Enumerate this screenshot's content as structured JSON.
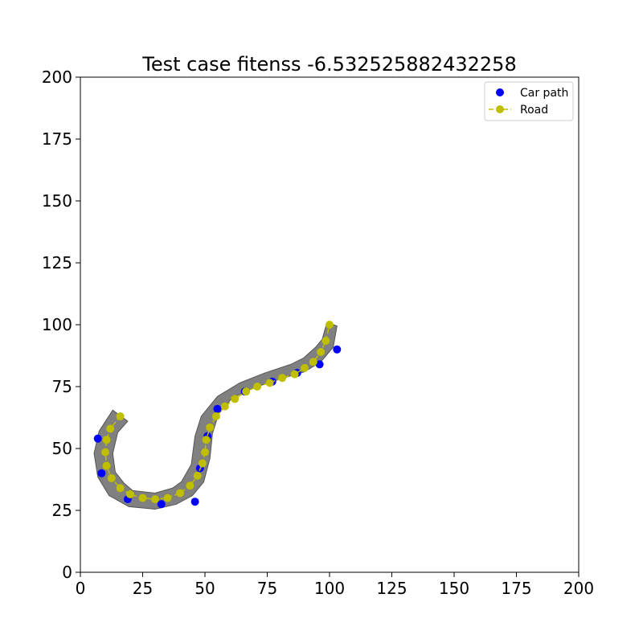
{
  "chart_data": {
    "type": "scatter",
    "title": "Test case fitenss -6.532525882432258",
    "xlabel": "",
    "ylabel": "",
    "xlim": [
      0,
      200
    ],
    "ylim": [
      0,
      200
    ],
    "xticks": [
      "0",
      "25",
      "50",
      "75",
      "100",
      "125",
      "150",
      "175",
      "200"
    ],
    "yticks": [
      "0",
      "25",
      "50",
      "75",
      "100",
      "125",
      "150",
      "175",
      "200"
    ],
    "grid": false,
    "legend_position": "top-right",
    "legend": [
      "Car path",
      "Road"
    ],
    "colors": {
      "car_path": "#0000ff",
      "road": "#bfbf00",
      "road_surface": "#808080"
    },
    "road_polygon": [
      [
        99.0,
        101.0
      ],
      [
        103.0,
        99.5
      ],
      [
        101.5,
        91.0
      ],
      [
        96.5,
        85.0
      ],
      [
        90.0,
        81.0
      ],
      [
        80.0,
        78.0
      ],
      [
        69.5,
        74.5
      ],
      [
        61.0,
        70.5
      ],
      [
        55.5,
        64.0
      ],
      [
        53.0,
        56.0
      ],
      [
        52.0,
        46.0
      ],
      [
        49.5,
        36.5
      ],
      [
        45.0,
        31.0
      ],
      [
        38.5,
        27.5
      ],
      [
        30.0,
        25.5
      ],
      [
        19.5,
        26.5
      ],
      [
        11.5,
        31.0
      ],
      [
        7.0,
        38.5
      ],
      [
        5.5,
        48.0
      ],
      [
        7.5,
        57.0
      ],
      [
        13.0,
        65.5
      ],
      [
        19.0,
        61.0
      ],
      [
        15.0,
        56.5
      ],
      [
        13.0,
        48.0
      ],
      [
        14.0,
        40.5
      ],
      [
        17.5,
        36.0
      ],
      [
        21.0,
        33.0
      ],
      [
        30.0,
        32.0
      ],
      [
        37.0,
        34.0
      ],
      [
        40.5,
        36.5
      ],
      [
        44.5,
        43.5
      ],
      [
        46.0,
        55.0
      ],
      [
        48.5,
        63.0
      ],
      [
        55.0,
        71.0
      ],
      [
        64.0,
        76.5
      ],
      [
        74.0,
        80.5
      ],
      [
        84.5,
        84.0
      ],
      [
        89.5,
        86.5
      ],
      [
        94.5,
        91.0
      ],
      [
        97.0,
        94.0
      ]
    ],
    "series": [
      {
        "name": "Car path",
        "kind": "scatter",
        "points": [
          [
            7,
            54
          ],
          [
            8.5,
            40
          ],
          [
            19,
            29.5
          ],
          [
            32.5,
            27.5
          ],
          [
            46,
            28.5
          ],
          [
            48,
            42
          ],
          [
            51,
            55
          ],
          [
            55,
            66
          ],
          [
            66,
            73
          ],
          [
            77,
            77
          ],
          [
            87,
            80.5
          ],
          [
            96,
            84
          ],
          [
            103,
            90
          ]
        ]
      },
      {
        "name": "Road",
        "kind": "line-dashed-markers",
        "points": [
          [
            16,
            63
          ],
          [
            12,
            58
          ],
          [
            10.5,
            53.5
          ],
          [
            10,
            48.5
          ],
          [
            10.5,
            43
          ],
          [
            12.5,
            38
          ],
          [
            16,
            34
          ],
          [
            20,
            31.5
          ],
          [
            25,
            30
          ],
          [
            30,
            29.5
          ],
          [
            35,
            30
          ],
          [
            40,
            32
          ],
          [
            44,
            35
          ],
          [
            47,
            39
          ],
          [
            49,
            44
          ],
          [
            50,
            48.5
          ],
          [
            50.5,
            53.5
          ],
          [
            52,
            58.5
          ],
          [
            54.5,
            63
          ],
          [
            58,
            67
          ],
          [
            62,
            70
          ],
          [
            66.5,
            73
          ],
          [
            71,
            75
          ],
          [
            76,
            76.5
          ],
          [
            81,
            78.5
          ],
          [
            86,
            80
          ],
          [
            90,
            82.5
          ],
          [
            93.5,
            85
          ],
          [
            96.5,
            89
          ],
          [
            98.5,
            93.5
          ],
          [
            100,
            100
          ]
        ]
      }
    ]
  }
}
